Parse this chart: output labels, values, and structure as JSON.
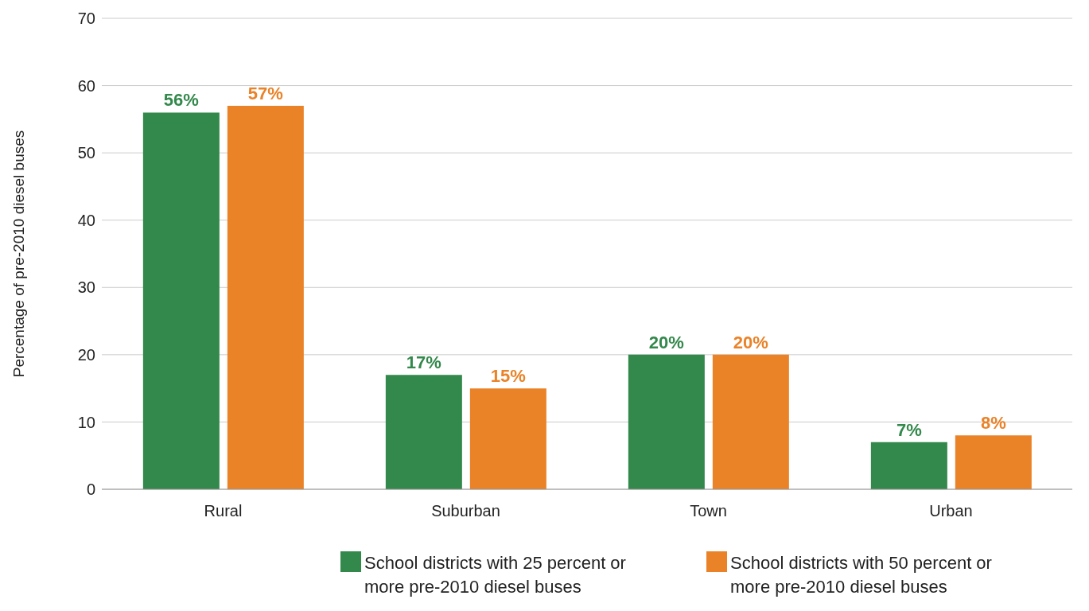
{
  "chart_data": {
    "type": "bar",
    "ylabel": "Percentage of pre-2010 diesel buses",
    "categories": [
      "Rural",
      "Suburban",
      "Town",
      "Urban"
    ],
    "series": [
      {
        "name": "School districts with 25 percent or more pre-2010 diesel buses",
        "color": "#33884b",
        "values": [
          56,
          17,
          20,
          7
        ],
        "value_labels": [
          "56%",
          "17%",
          "20%",
          "7%"
        ]
      },
      {
        "name": "School districts with 50 percent or more pre-2010 diesel buses",
        "color": "#ea8228",
        "values": [
          57,
          15,
          20,
          8
        ],
        "value_labels": [
          "57%",
          "15%",
          "20%",
          "8%"
        ]
      }
    ],
    "ylim": [
      0,
      70
    ],
    "yticks": [
      0,
      10,
      20,
      30,
      40,
      50,
      60,
      70
    ],
    "grid": "y",
    "legend": "bottom"
  }
}
